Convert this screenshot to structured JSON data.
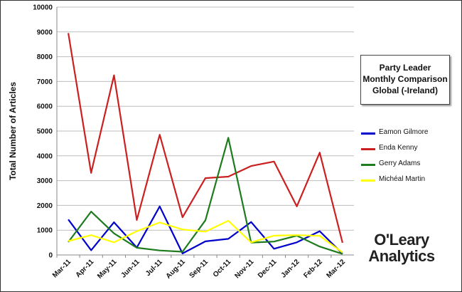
{
  "chart_data": {
    "type": "line",
    "title": [
      "Party Leader",
      "Monthly Comparison",
      "Global (-Ireland)"
    ],
    "xlabel": "",
    "ylabel": "Total Number of Articles",
    "ylim": [
      0,
      10000
    ],
    "yticks": [
      "0",
      "1000",
      "2000",
      "3000",
      "4000",
      "5000",
      "6000",
      "7000",
      "8000",
      "9000",
      "10000"
    ],
    "categories": [
      "Mar-11",
      "Apr-11",
      "May-11",
      "Jun-11",
      "Jul-11",
      "Aug-11",
      "Sep-11",
      "Oct-11",
      "Nov-11",
      "Dec-11",
      "Jan-12",
      "Feb-12",
      "Mar-12"
    ],
    "grid": "horizontal",
    "legend_position": "right",
    "series": [
      {
        "name": "Eamon Gilmore",
        "color": "#0000cc",
        "values": [
          1430,
          190,
          1320,
          300,
          1960,
          60,
          550,
          650,
          1330,
          250,
          510,
          960,
          50
        ]
      },
      {
        "name": "Enda Kenny",
        "color": "#cc1f1f",
        "values": [
          8950,
          3310,
          7250,
          1410,
          4850,
          1520,
          3100,
          3160,
          3590,
          3770,
          1960,
          4130,
          490
        ]
      },
      {
        "name": "Gerry Adams",
        "color": "#1e7b1e",
        "values": [
          520,
          1750,
          870,
          290,
          180,
          130,
          1400,
          4730,
          500,
          540,
          780,
          340,
          40
        ]
      },
      {
        "name": "Michéal Martin",
        "color": "#ffff00",
        "values": [
          560,
          800,
          510,
          960,
          1310,
          1030,
          940,
          1380,
          510,
          780,
          800,
          770,
          100
        ]
      }
    ]
  },
  "logo": {
    "line1": "O'Leary",
    "line2": "Analytics"
  }
}
